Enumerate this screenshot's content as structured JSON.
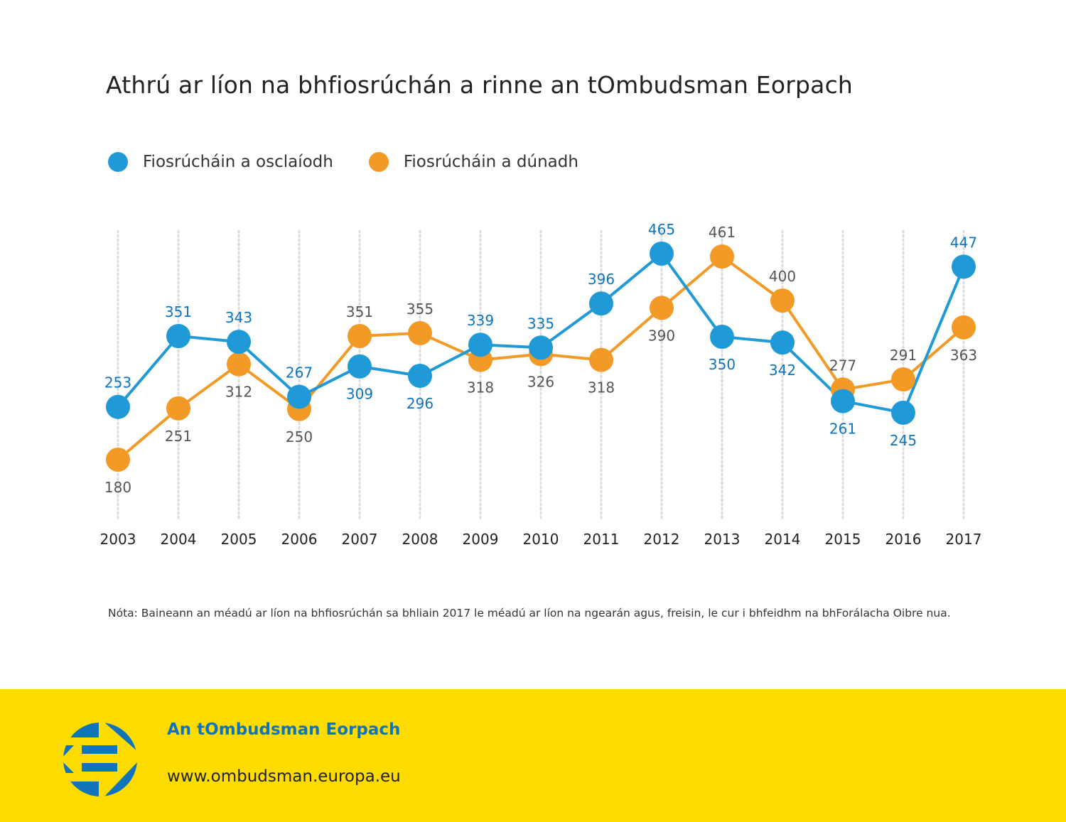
{
  "title": "Athrú ar líon na bhfiosrúchán a rinne an tOmbudsman Eorpach",
  "legend": [
    {
      "label": "Fiosrúcháin a osclaíodh",
      "color": "#1f9ad6"
    },
    {
      "label": "Fiosrúcháin a dúnadh",
      "color": "#f39a26"
    }
  ],
  "note": "Nóta: Baineann an méadú ar líon na bhfiosrúchán sa bhliain 2017 le méadú ar líon na ngearán agus, freisin, le cur i bhfeidhm na bhForálacha Oibre nua.",
  "footer": {
    "org_name": "An tOmbudsman Eorpach",
    "url": "www.ombudsman.europa.eu",
    "logo_icon": "european-ombudsman-logo"
  },
  "chart_data": {
    "type": "line",
    "title": "Athrú ar líon na bhfiosrúchán a rinne an tOmbudsman Eorpach",
    "xlabel": "",
    "ylabel": "",
    "grid": "vertical-dotted",
    "legend_position": "top-left",
    "x": [
      "2003",
      "2004",
      "2005",
      "2006",
      "2007",
      "2008",
      "2009",
      "2010",
      "2011",
      "2012",
      "2013",
      "2014",
      "2015",
      "2016",
      "2017"
    ],
    "series": [
      {
        "name": "Fiosrúcháin a osclaíodh",
        "color": "#1f9ad6",
        "label_color": "#0f74ba",
        "values": [
          253,
          351,
          343,
          267,
          309,
          296,
          339,
          335,
          396,
          465,
          350,
          342,
          261,
          245,
          447
        ],
        "label_pos": [
          "above",
          "above",
          "above",
          "above",
          "below",
          "below",
          "above",
          "above",
          "above",
          "above",
          "below",
          "below",
          "below",
          "below",
          "above"
        ]
      },
      {
        "name": "Fiosrúcháin a dúnadh",
        "color": "#f39a26",
        "label_color": "#555555",
        "values": [
          180,
          251,
          312,
          250,
          351,
          355,
          318,
          326,
          318,
          390,
          461,
          400,
          277,
          291,
          363
        ],
        "label_pos": [
          "below",
          "below",
          "below",
          "below",
          "above",
          "above",
          "below",
          "below",
          "below",
          "below",
          "above",
          "above",
          "above",
          "above",
          "below"
        ]
      }
    ],
    "ylim": [
      180,
      465
    ]
  }
}
